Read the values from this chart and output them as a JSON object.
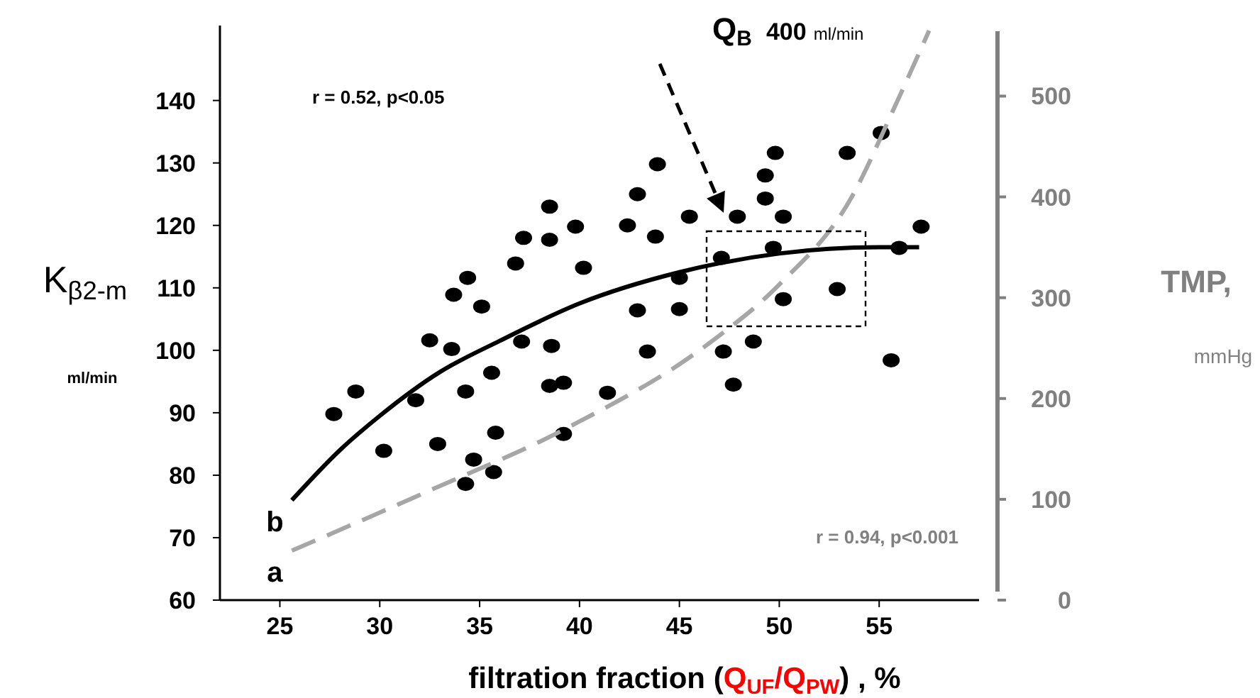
{
  "chart_data": {
    "type": "scatter",
    "xlabel": "filtration fraction  (Q$_{UF}$/Q$_{PW}$) , %",
    "ylabel": "K$_{β2-m}$\nml/min",
    "y2label": "TMP,\nmmHg",
    "xlim": [
      22,
      60
    ],
    "xticks": [
      25,
      30,
      35,
      40,
      45,
      50,
      55
    ],
    "ylim": [
      60,
      152
    ],
    "yticks": [
      60,
      70,
      80,
      90,
      100,
      110,
      120,
      130,
      140
    ],
    "y2lim": [
      0,
      570
    ],
    "y2ticks": [
      0,
      100,
      200,
      300,
      400,
      500
    ],
    "grid": false,
    "marker": "circle",
    "series": [
      {
        "color": "#000000",
        "x": [
          27.7,
          28.8,
          30.2,
          31.8,
          32.5,
          32.9,
          33.6,
          33.7,
          34.4,
          34.3,
          35.1,
          34.7,
          34.3,
          35.6,
          35.8,
          35.7,
          36.8,
          37.2,
          37.1,
          38.5,
          38.5,
          38.6,
          38.5,
          39.2,
          39.2,
          39.8,
          40.2,
          41.4,
          42.4,
          42.9,
          43.9,
          43.8,
          42.9,
          43.4,
          45,
          45,
          45.5,
          47.1,
          47.2,
          47.7,
          47.9,
          48.7,
          49.3,
          49.3,
          49.8,
          49.7,
          50.2,
          50.2,
          53.4,
          52.9,
          55.1,
          55.6,
          56,
          57.1
        ],
        "values": [
          89.8,
          93.4,
          83.9,
          92,
          101.6,
          85,
          100.2,
          108.9,
          111.6,
          93.4,
          107,
          82.5,
          78.6,
          96.4,
          86.8,
          80.5,
          113.9,
          118,
          101.4,
          123,
          117.7,
          100.7,
          94.3,
          94.8,
          86.6,
          119.8,
          113.2,
          93.2,
          120,
          125,
          129.8,
          118.2,
          106.4,
          99.8,
          111.6,
          106.6,
          121.4,
          114.8,
          99.8,
          94.5,
          121.4,
          101.4,
          128,
          124.3,
          131.6,
          116.4,
          121.4,
          108.2,
          131.6,
          109.8,
          134.8,
          98.4,
          116.4,
          119.8
        ]
      },
      {
        "type": "line",
        "name": "b",
        "color": "#000000",
        "line_style": "solid",
        "marker": "none",
        "x": [
          25.6,
          28,
          30,
          33,
          36,
          40,
          45,
          50,
          55,
          57
        ],
        "values": [
          76,
          84,
          89.5,
          96.5,
          101.5,
          107.5,
          112.5,
          115.5,
          116.5,
          116.5
        ]
      },
      {
        "type": "line",
        "name": "a",
        "color": "#a6a6a6",
        "line_style": "dashed",
        "marker": "none",
        "axis": "y2",
        "x": [
          25.6,
          32.3,
          39.4,
          46.5,
          50,
          53.6,
          55.7,
          57.5
        ],
        "values": [
          49,
          107,
          171,
          255,
          313,
          399,
          486,
          565
        ]
      }
    ],
    "annotations": [
      {
        "text": "r = 0.52, p<0.05"
      },
      {
        "text": "r = 0.94, p<0.001"
      },
      "Q$_{B}$  400 ml/min"
    ]
  }
}
